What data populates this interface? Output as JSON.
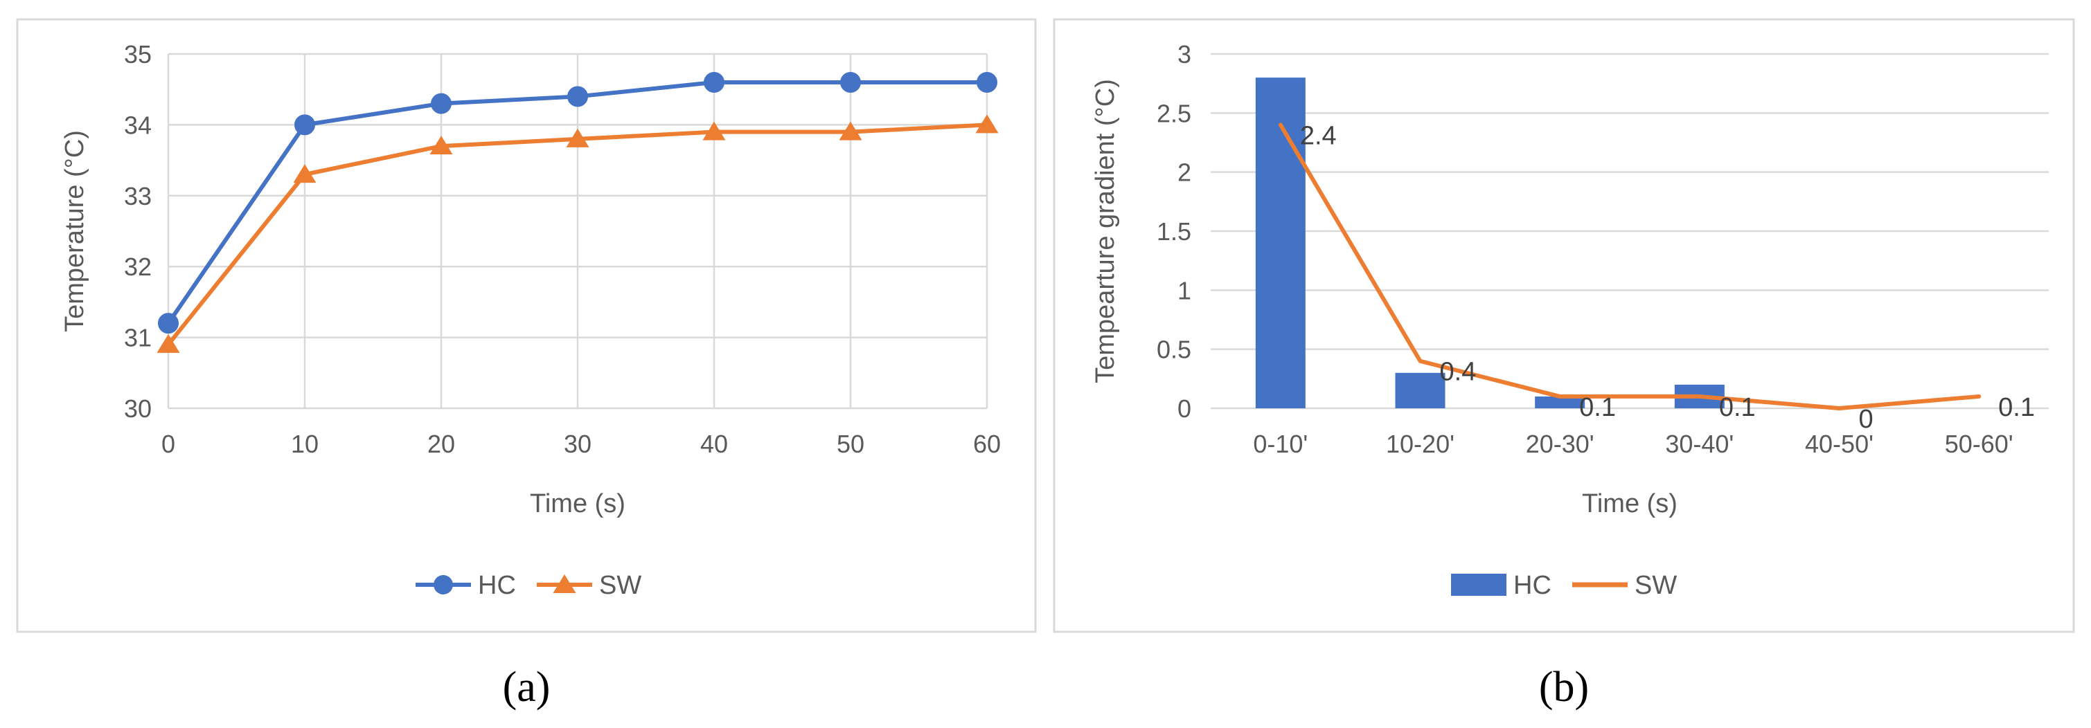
{
  "chart_data": [
    {
      "type": "line",
      "title": "",
      "caption": "(a)",
      "xlabel": "Time (s)",
      "ylabel": "Temperature (°C)",
      "x": [
        0,
        10,
        20,
        30,
        40,
        50,
        60
      ],
      "xlim": [
        0,
        60
      ],
      "ylim": [
        30,
        35
      ],
      "yticks": [
        30,
        31,
        32,
        33,
        34,
        35
      ],
      "grid": true,
      "legend_position": "bottom",
      "series": [
        {
          "name": "HC",
          "color": "#4472c4",
          "marker": "circle",
          "values": [
            31.2,
            34.0,
            34.3,
            34.4,
            34.6,
            34.6,
            34.6
          ]
        },
        {
          "name": "SW",
          "color": "#ed7d31",
          "marker": "triangle",
          "values": [
            30.9,
            33.3,
            33.7,
            33.8,
            33.9,
            33.9,
            34.0
          ]
        }
      ]
    },
    {
      "type": "bar",
      "title": "",
      "caption": "(b)",
      "xlabel": "Time (s)",
      "ylabel": "Tempearture gradient (°C)",
      "categories": [
        "0-10'",
        "10-20'",
        "20-30'",
        "30-40'",
        "40-50'",
        "50-60'"
      ],
      "ylim": [
        0,
        3
      ],
      "yticks": [
        "0",
        "0.5",
        "1",
        "1.5",
        "2",
        "2.5",
        "3"
      ],
      "grid": true,
      "legend_position": "bottom",
      "series": [
        {
          "name": "HC",
          "kind": "bar",
          "color": "#4472c4",
          "values": [
            2.8,
            0.3,
            0.1,
            0.2,
            0.0,
            0.0
          ]
        },
        {
          "name": "SW",
          "kind": "line",
          "color": "#ed7d31",
          "values": [
            2.4,
            0.4,
            0.1,
            0.1,
            0.0,
            0.1
          ],
          "labels": [
            "2.4",
            "0.4",
            "0.1",
            "0.1",
            "0",
            "0.1"
          ]
        }
      ]
    }
  ]
}
